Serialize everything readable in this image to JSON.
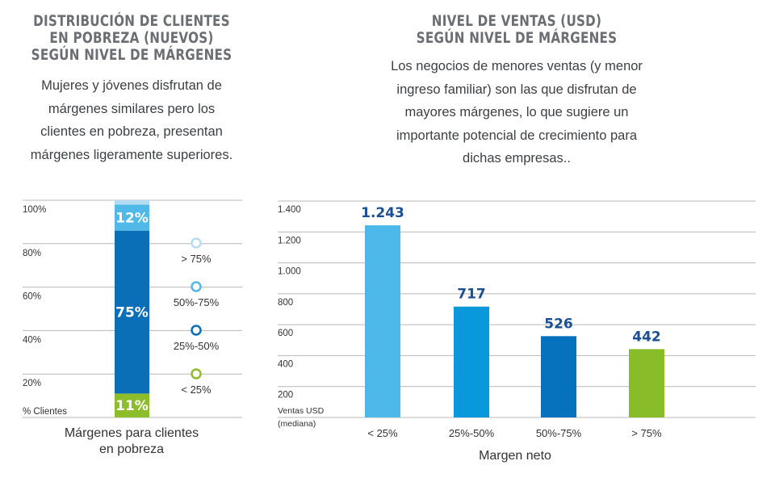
{
  "left_panel": {
    "title_lines": [
      "DISTRIBUCIÓN DE CLIENTES",
      "EN POBREZA (NUEVOS)",
      "SEGÚN NIVEL DE MÁRGENES"
    ],
    "subtitle_lines": [
      "Mujeres y jóvenes disfrutan de",
      "márgenes similares pero los",
      "clientes en pobreza, presentan",
      "márgenes ligeramente superiores."
    ]
  },
  "right_panel": {
    "title_lines": [
      "NIVEL DE VENTAS (USD)",
      "SEGÚN NIVEL DE MÁRGENES"
    ],
    "subtitle_lines": [
      "Los negocios de menores ventas (y menor",
      "ingreso familiar) son las que disfrutan de",
      "mayores márgenes, lo que sugiere un",
      "importante potencial de crecimiento para",
      "dichas empresas.."
    ]
  },
  "chart_data": [
    {
      "type": "bar",
      "stacked": true,
      "ylabel": "% Clientes",
      "xlabel_lines": [
        "Márgenes para clientes",
        "en pobreza"
      ],
      "ylim": [
        0,
        100
      ],
      "yticks": [
        0,
        20,
        40,
        60,
        80,
        100
      ],
      "ytick_labels": [
        "",
        "20%",
        "40%",
        "60%",
        "80%",
        "100%"
      ],
      "grid": true,
      "series": [
        {
          "name": "< 25%",
          "value": 11,
          "label": "11%",
          "color": "#8ebd2b"
        },
        {
          "name": "25%-50%",
          "value": 75,
          "label": "75%",
          "color": "#0b6fb8"
        },
        {
          "name": "50%-75%",
          "value": 12,
          "label": "12%",
          "color": "#51b9e8"
        },
        {
          "name": "> 75%",
          "value": 2,
          "label": "",
          "color": "#b5dcf2"
        }
      ],
      "legend": {
        "placement": "right",
        "entries": [
          {
            "name": "> 75%",
            "color": "#b5dcf2"
          },
          {
            "name": "50%-75%",
            "color": "#51b9e8"
          },
          {
            "name": "25%-50%",
            "color": "#0b6fb8"
          },
          {
            "name": "< 25%",
            "color": "#8ebd2b"
          }
        ]
      }
    },
    {
      "type": "bar",
      "ylabel_lines": [
        "Ventas USD",
        "(mediana)"
      ],
      "xlabel": "Margen neto",
      "ylim": [
        0,
        1400
      ],
      "yticks": [
        0,
        200,
        400,
        600,
        800,
        1000,
        1200,
        1400
      ],
      "ytick_labels": [
        "",
        "200",
        "400",
        "600",
        "800",
        "1.000",
        "1.200",
        "1.400"
      ],
      "grid": true,
      "categories": [
        "< 25%",
        "25%-50%",
        "50%-75%",
        "> 75%"
      ],
      "values": [
        1243,
        717,
        526,
        442
      ],
      "value_labels": [
        "1.243",
        "717",
        "526",
        "442"
      ],
      "colors": [
        "#4db8ea",
        "#0a98dc",
        "#0672bd",
        "#88bc28"
      ]
    }
  ]
}
